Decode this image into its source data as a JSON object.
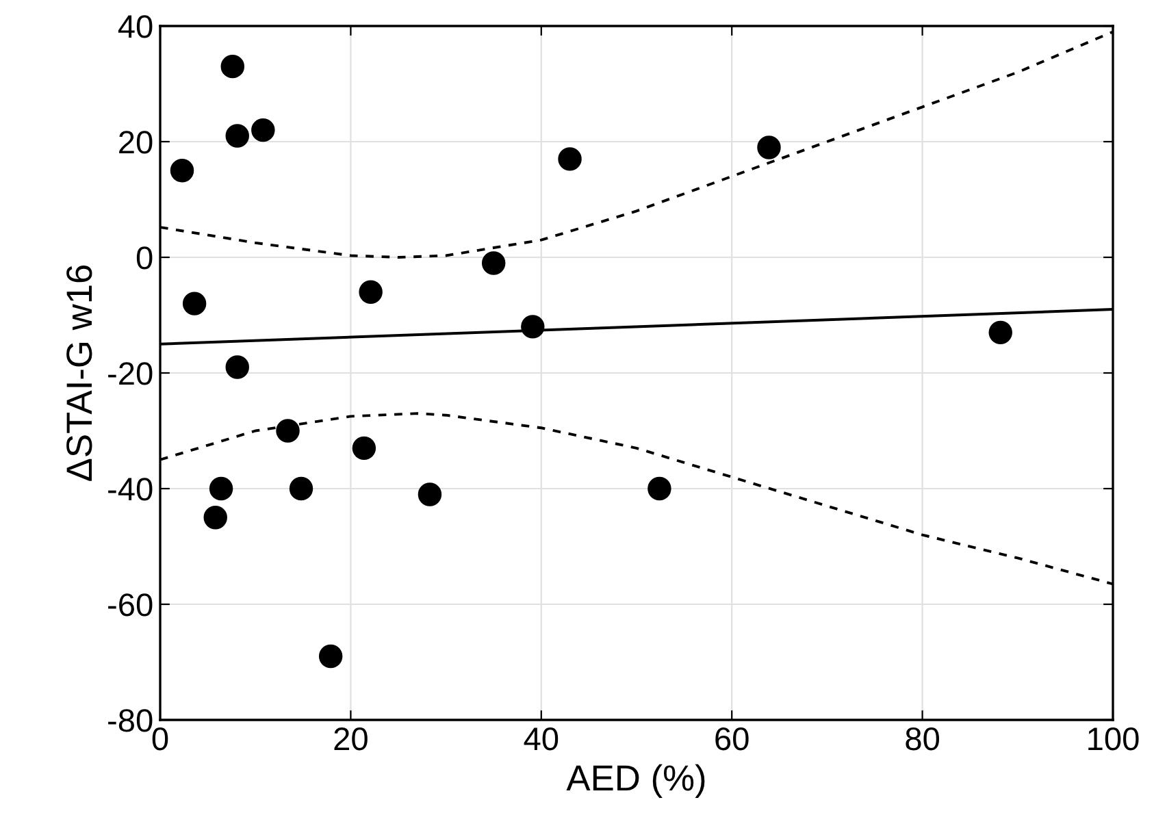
{
  "chart_data": {
    "type": "scatter",
    "xlabel": "AED (%)",
    "ylabel": "ΔSTAI-G w16",
    "xlim": [
      0,
      100
    ],
    "xticks": [
      0,
      20,
      40,
      60,
      80,
      100
    ],
    "ylim": [
      -80,
      40
    ],
    "yticks": [
      -80,
      -60,
      -40,
      -20,
      0,
      20,
      40
    ],
    "grid": true,
    "series": [
      {
        "color": "#000000",
        "marker": "circle",
        "x": [
          2.3,
          3.6,
          7.6,
          8.1,
          8.1,
          10.8,
          22.1,
          35,
          39.1,
          43,
          63.9,
          88.2,
          13.4,
          21.4,
          6.4,
          14.8,
          5.8,
          28.3,
          52.4,
          17.9
        ],
        "values": [
          15,
          -8,
          33,
          21,
          -19,
          22,
          -6,
          -1,
          -12,
          17,
          19,
          -13,
          -30,
          -33,
          -40,
          -40,
          -45,
          -41,
          -40,
          -69
        ]
      },
      {
        "type": "line",
        "color": "#000000",
        "marker": "none",
        "line_style": "solid",
        "x": [
          0,
          100
        ],
        "values": [
          -15,
          -9
        ]
      },
      {
        "type": "line",
        "color": "#000000",
        "marker": "none",
        "line_style": "dashed",
        "x": [
          0,
          10,
          20,
          25,
          30,
          40,
          50,
          60,
          70,
          80,
          90,
          100
        ],
        "values": [
          5.2,
          2.5,
          0.3,
          0,
          0.3,
          3,
          8,
          14,
          20,
          26,
          32,
          39
        ]
      },
      {
        "type": "line",
        "color": "#000000",
        "marker": "none",
        "line_style": "dashed",
        "x": [
          0,
          10,
          20,
          27,
          30,
          40,
          50,
          60,
          70,
          80,
          90,
          100
        ],
        "values": [
          -35,
          -30,
          -27.5,
          -27,
          -27.3,
          -29.5,
          -33,
          -38,
          -43,
          -48,
          -52,
          -56.5
        ]
      }
    ]
  }
}
